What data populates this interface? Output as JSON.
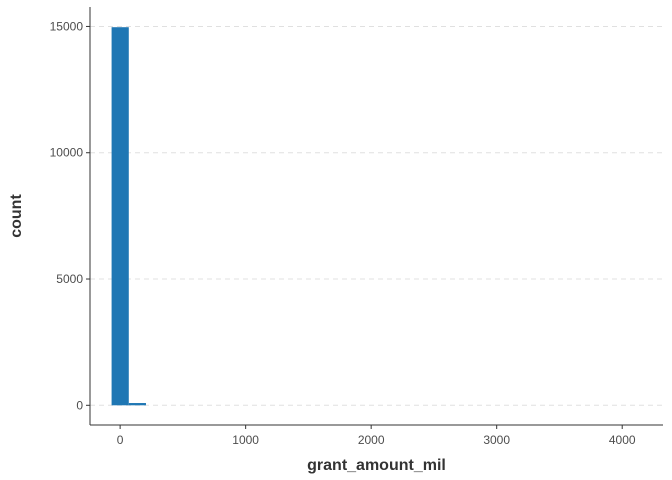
{
  "chart_data": {
    "type": "bar",
    "title": "",
    "xlabel": "grant_amount_mil",
    "ylabel": "count",
    "xlim": [
      -240,
      4325
    ],
    "ylim": [
      -780,
      15770
    ],
    "x_ticks": [
      0,
      1000,
      2000,
      3000,
      4000
    ],
    "x_tick_labels": [
      "0",
      "1000",
      "2000",
      "3000",
      "4000"
    ],
    "y_ticks": [
      0,
      5000,
      10000,
      15000
    ],
    "y_tick_labels": [
      "0",
      "5000",
      "10000",
      "15000"
    ],
    "bin_width": 137,
    "bins": [
      {
        "x0": -68,
        "x1": 69,
        "count": 14970
      },
      {
        "x0": 69,
        "x1": 206,
        "count": 90
      }
    ],
    "grid": "horizontal-dashed",
    "bar_color": "#1F77B4",
    "grid_color": "#E0E0E0",
    "axis_color": "#333333"
  }
}
